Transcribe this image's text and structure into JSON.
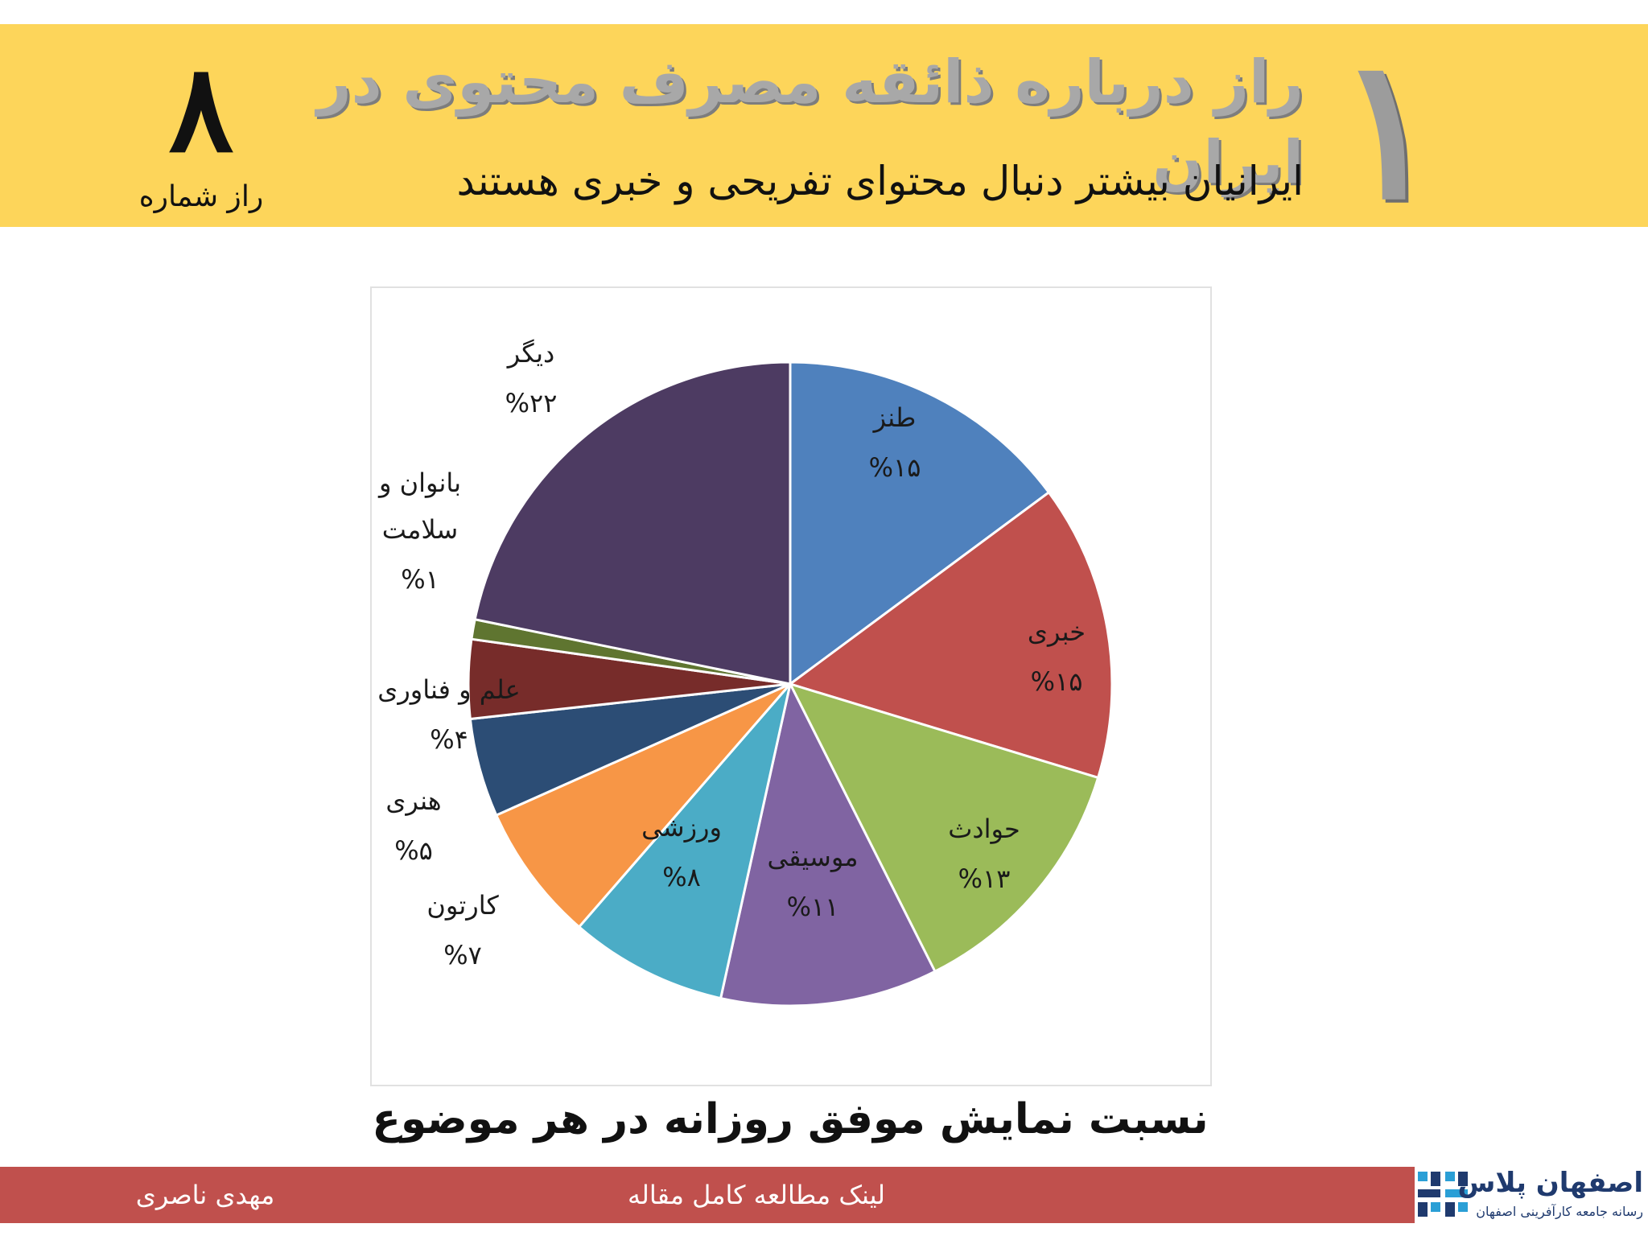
{
  "header": {
    "title": "راز درباره ذائقه مصرف محتوی در ایران",
    "subtitle": "ایرانیان بیشتر دنبال محتوای تفریحی و خبری هستند",
    "big_number": "۱",
    "secret_number": "۸",
    "secret_label": "راز شماره"
  },
  "chart_data": {
    "type": "pie",
    "caption": "نسبت نمایش موفق روزانه در هر موضوع",
    "slices": [
      {
        "label": "طنز",
        "value_label": "%۱۵",
        "value": 15,
        "color": "#4f81bd"
      },
      {
        "label": "خبری",
        "value_label": "%۱۵",
        "value": 15,
        "color": "#c0504d"
      },
      {
        "label": "حوادث",
        "value_label": "%۱۳",
        "value": 13,
        "color": "#9bbb59"
      },
      {
        "label": "موسیقی",
        "value_label": "%۱۱",
        "value": 11,
        "color": "#8064a2"
      },
      {
        "label": "ورزشی",
        "value_label": "%۸",
        "value": 8,
        "color": "#4bacc6"
      },
      {
        "label": "کارتون",
        "value_label": "%۷",
        "value": 7,
        "color": "#f79646"
      },
      {
        "label": "هنری",
        "value_label": "%۵",
        "value": 5,
        "color": "#2c4d75"
      },
      {
        "label": "علم و فناوری",
        "value_label": "%۴",
        "value": 4,
        "color": "#772c2a"
      },
      {
        "label": "بانوان و سلامت",
        "label_lines": [
          "بانوان و",
          "سلامت"
        ],
        "value_label": "%۱",
        "value": 1,
        "color": "#5f7530"
      },
      {
        "label": "دیگر",
        "value_label": "%۲۲",
        "value": 22,
        "color": "#4d3b62"
      }
    ]
  },
  "footer": {
    "author": "مهدی ناصری",
    "link_text": "لینک مطالعه کامل مقاله"
  },
  "logo": {
    "name": "اصفهان پلاس",
    "tagline": "رسانه جامعه کارآفرینی اصفهان",
    "color": "#1f3a6e",
    "accent": "#2a9fd6"
  }
}
